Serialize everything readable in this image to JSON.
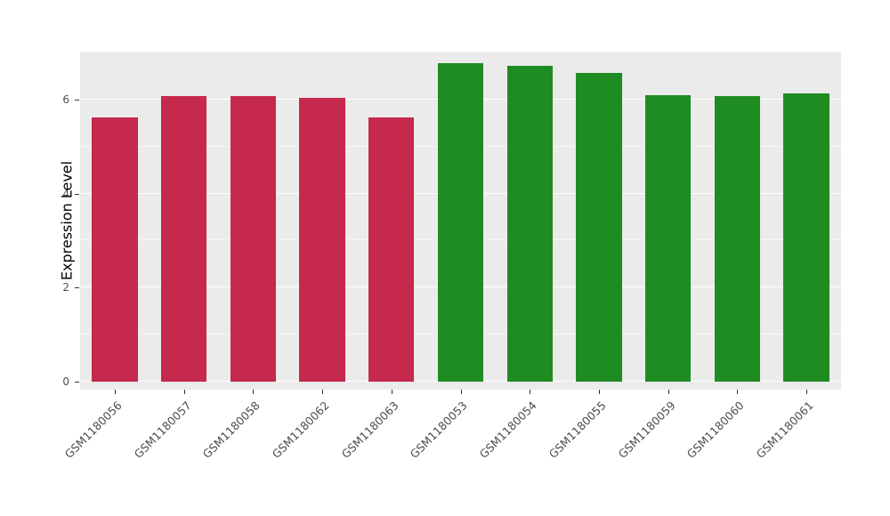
{
  "figure": {
    "background": "#FFFFFF",
    "panel_background": "#EBEBEB",
    "grid_color": "#FFFFFF",
    "axis_text_color": "#4D4D4D",
    "axis_title_color": "#000000"
  },
  "chart_data": {
    "type": "bar",
    "title": "",
    "xlabel": "",
    "ylabel": "Expression Level",
    "ylim": [
      0,
      7
    ],
    "yticks": [
      0,
      2,
      4,
      6
    ],
    "yticks_minor": [
      1,
      3,
      5,
      7
    ],
    "grid": true,
    "legend": "none",
    "categories": [
      "GSM1180056",
      "GSM1180057",
      "GSM1180058",
      "GSM1180062",
      "GSM1180063",
      "GSM1180053",
      "GSM1180054",
      "GSM1180055",
      "GSM1180059",
      "GSM1180060",
      "GSM1180061"
    ],
    "values": [
      5.62,
      6.08,
      6.08,
      6.03,
      5.62,
      6.77,
      6.71,
      6.56,
      6.1,
      6.07,
      6.13
    ],
    "bar_colors": [
      "#C5294D",
      "#C5294D",
      "#C5294D",
      "#C5294D",
      "#C5294D",
      "#1F8C22",
      "#1F8C22",
      "#1F8C22",
      "#1F8C22",
      "#1F8C22",
      "#1F8C22"
    ]
  }
}
